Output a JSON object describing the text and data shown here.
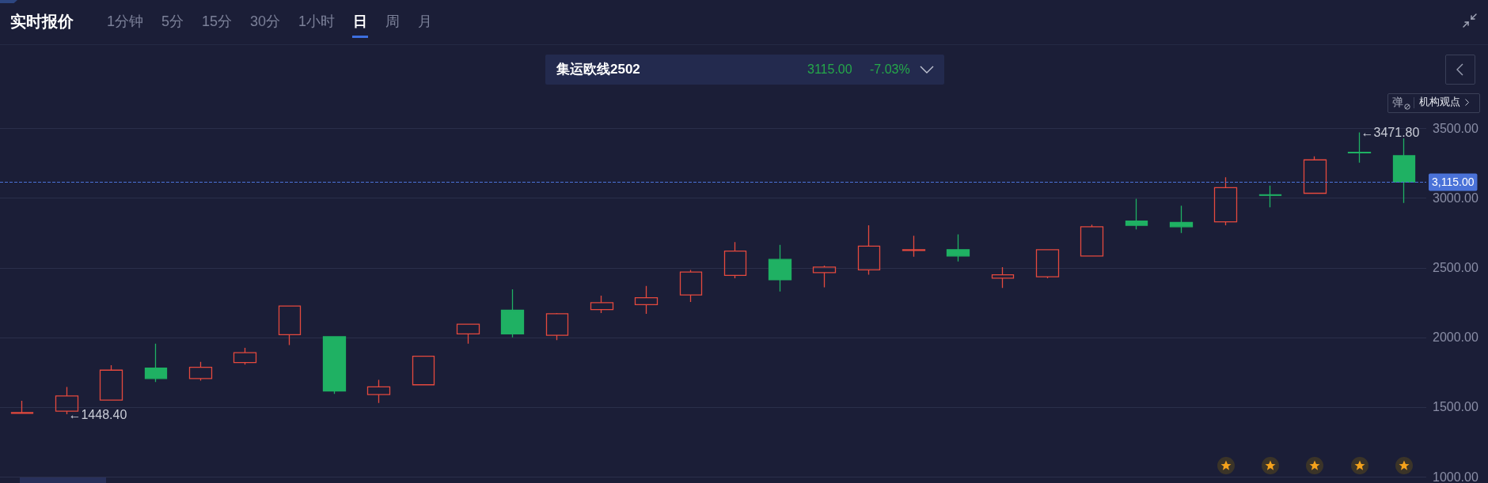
{
  "chart_data": {
    "type": "candlestick",
    "title": "实时报价",
    "subtitle": "集运欧线2502",
    "categories": [
      null,
      null,
      null,
      null,
      null,
      null,
      null,
      null,
      null,
      null,
      null,
      null,
      null,
      null,
      null,
      null,
      null,
      null,
      null,
      null,
      null,
      null,
      null,
      null,
      null,
      null,
      null,
      null,
      null,
      null,
      null,
      null
    ],
    "ohlc": [
      [
        1455,
        1545,
        1455,
        1460
      ],
      [
        1470,
        1645,
        1448.4,
        1580
      ],
      [
        1550,
        1800,
        1550,
        1765
      ],
      [
        1780,
        1955,
        1680,
        1705
      ],
      [
        1705,
        1825,
        1690,
        1785
      ],
      [
        1820,
        1925,
        1805,
        1890
      ],
      [
        2020,
        2225,
        1945,
        2225
      ],
      [
        2005,
        2005,
        1595,
        1615
      ],
      [
        1590,
        1695,
        1530,
        1645
      ],
      [
        1660,
        1865,
        1660,
        1865
      ],
      [
        2025,
        2095,
        1955,
        2095
      ],
      [
        2195,
        2345,
        2000,
        2025
      ],
      [
        2015,
        2175,
        1980,
        2170
      ],
      [
        2200,
        2300,
        2175,
        2250
      ],
      [
        2235,
        2370,
        2170,
        2285
      ],
      [
        2305,
        2485,
        2255,
        2470
      ],
      [
        2445,
        2685,
        2425,
        2620
      ],
      [
        2560,
        2665,
        2330,
        2415
      ],
      [
        2465,
        2515,
        2360,
        2505
      ],
      [
        2485,
        2805,
        2450,
        2655
      ],
      [
        2625,
        2730,
        2580,
        2630
      ],
      [
        2630,
        2740,
        2545,
        2585
      ],
      [
        2425,
        2505,
        2355,
        2450
      ],
      [
        2435,
        2630,
        2425,
        2630
      ],
      [
        2585,
        2810,
        2585,
        2795
      ],
      [
        2835,
        2995,
        2775,
        2805
      ],
      [
        2825,
        2945,
        2750,
        2795
      ],
      [
        2830,
        3150,
        2805,
        3075
      ],
      [
        3025,
        3090,
        2935,
        3020
      ],
      [
        3035,
        3300,
        3035,
        3275
      ],
      [
        3330,
        3471.8,
        3255,
        3325
      ],
      [
        3305,
        3430,
        2965,
        3115
      ]
    ],
    "colors": [
      "#e5493e",
      "#e5493e",
      "#e5493e",
      "#1fb163",
      "#e5493e",
      "#e5493e",
      "#e5493e",
      "#1fb163",
      "#e5493e",
      "#e5493e",
      "#e5493e",
      "#1fb163",
      "#e5493e",
      "#e5493e",
      "#e5493e",
      "#e5493e",
      "#e5493e",
      "#1fb163",
      "#e5493e",
      "#e5493e",
      "#e5493e",
      "#1fb163",
      "#e5493e",
      "#e5493e",
      "#e5493e",
      "#1fb163",
      "#1fb163",
      "#e5493e",
      "#1fb163",
      "#e5493e",
      "#1fb163",
      "#1fb163"
    ],
    "ylim": [
      1000,
      3500
    ],
    "yticks": [
      {
        "value": 1000,
        "label": "1000.00"
      },
      {
        "value": 1500,
        "label": "1500.00"
      },
      {
        "value": 2000,
        "label": "2000.00"
      },
      {
        "value": 2500,
        "label": "2500.00"
      },
      {
        "value": 3000,
        "label": "3000.00"
      },
      {
        "value": 3500,
        "label": "3500.00"
      }
    ],
    "grid": "y",
    "tick_labels": "y",
    "ref_lines": [
      {
        "axis": "y",
        "value": 3115,
        "label": "3,115.00",
        "color": "#4a72d8",
        "line_style": "dashed"
      }
    ],
    "annotations": [
      "1分钟",
      "5分",
      "15分",
      "30分",
      "1小时",
      "日",
      "周",
      "月",
      "3115.00",
      "-7.03%",
      "弹",
      "机构观点",
      "←3471.80",
      "←1448.40"
    ]
  }
}
